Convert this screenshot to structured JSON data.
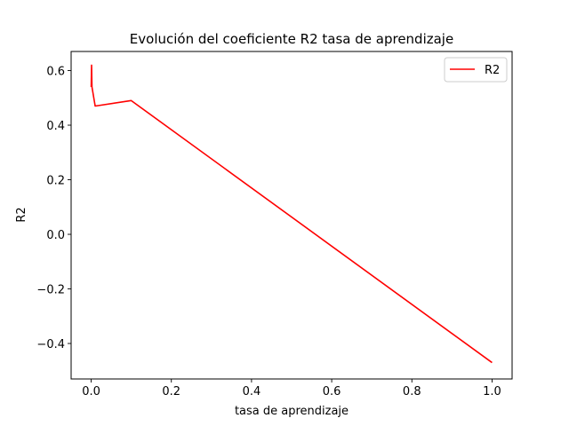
{
  "chart_data": {
    "type": "line",
    "title": "Evolución del coeficiente R2 tasa de aprendizaje",
    "xlabel": "tasa de aprendizaje",
    "ylabel": "R2",
    "xlim": [
      -0.05,
      1.05
    ],
    "ylim": [
      -0.53,
      0.67
    ],
    "xticks": [
      0.0,
      0.2,
      0.4,
      0.6,
      0.8,
      1.0
    ],
    "xtick_labels": [
      "0.0",
      "0.2",
      "0.4",
      "0.6",
      "0.8",
      "1.0"
    ],
    "yticks": [
      -0.4,
      -0.2,
      0.0,
      0.2,
      0.4,
      0.6
    ],
    "ytick_labels": [
      "−0.4",
      "−0.2",
      "0.0",
      "0.2",
      "0.4",
      "0.6"
    ],
    "grid": false,
    "legend_position": "top-right",
    "series": [
      {
        "name": "R2",
        "color": "#ff0000",
        "x": [
          0.0001,
          0.001,
          0.002,
          0.01,
          0.1,
          1.0
        ],
        "y": [
          0.54,
          0.62,
          0.54,
          0.47,
          0.49,
          -0.47
        ]
      }
    ]
  }
}
